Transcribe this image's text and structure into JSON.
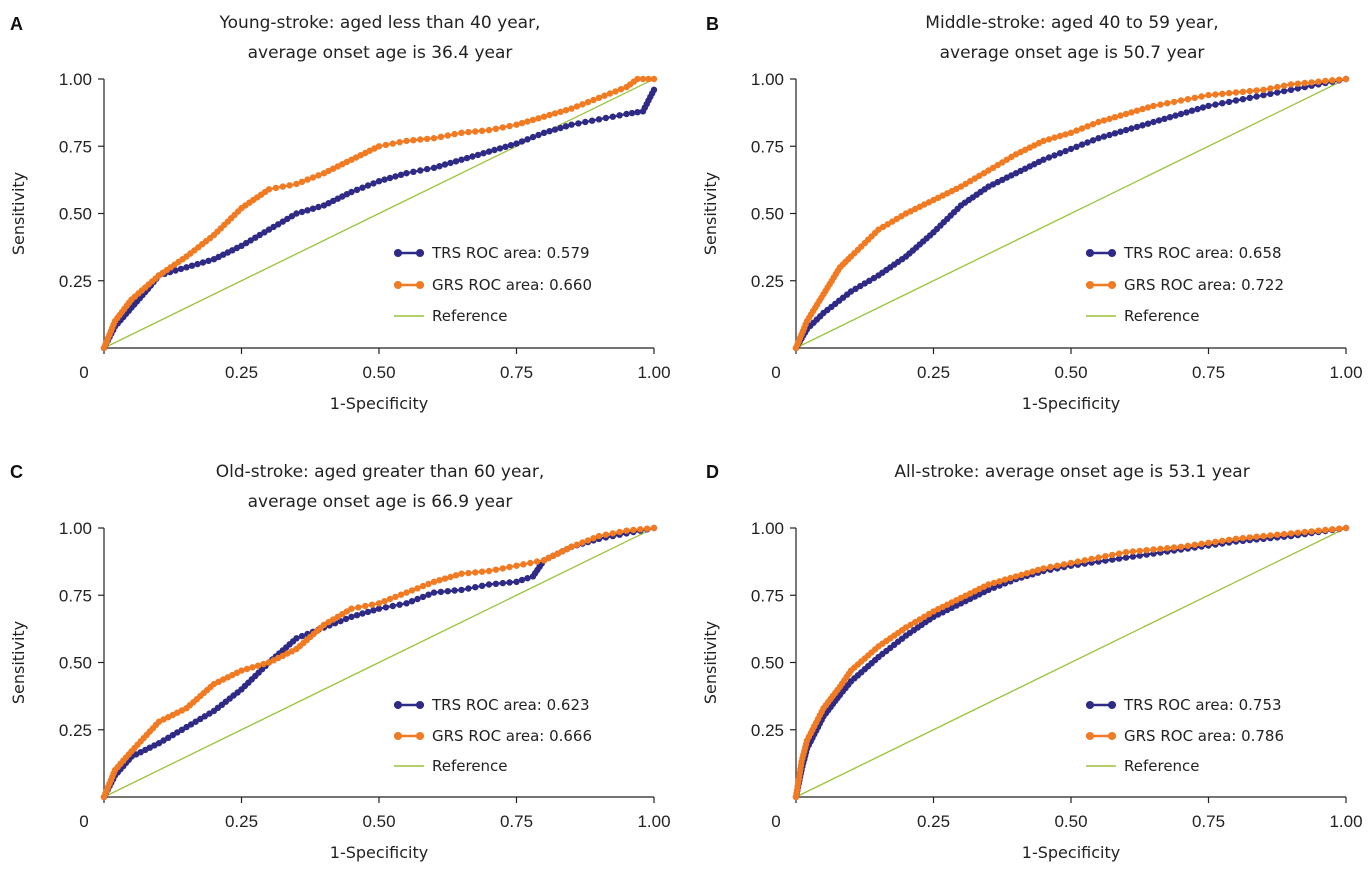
{
  "colors": {
    "trs": "#2e2a86",
    "grs": "#f07b22",
    "reference": "#9bc23c"
  },
  "chart_data": [
    {
      "type": "line",
      "panel": "A",
      "title": [
        "Young-stroke: aged less than 40 year,",
        "average onset age is 36.4 year"
      ],
      "xlabel": "1-Specificity",
      "ylabel": "Sensitivity",
      "xlim": [
        0,
        1
      ],
      "ylim": [
        0,
        1
      ],
      "xticks": [
        "0",
        "0.25",
        "0.50",
        "0.75",
        "1.00"
      ],
      "yticks": [
        "0.25",
        "0.50",
        "0.75",
        "1.00"
      ],
      "legend_position": "bottom-right",
      "series": [
        {
          "name": "TRS ROC area: 0.579",
          "key": "trs",
          "x": [
            0,
            0.02,
            0.05,
            0.08,
            0.1,
            0.15,
            0.2,
            0.25,
            0.3,
            0.35,
            0.4,
            0.45,
            0.5,
            0.55,
            0.6,
            0.65,
            0.7,
            0.75,
            0.8,
            0.85,
            0.9,
            0.95,
            0.98,
            1.0
          ],
          "y": [
            0,
            0.08,
            0.15,
            0.22,
            0.27,
            0.3,
            0.33,
            0.38,
            0.44,
            0.5,
            0.53,
            0.58,
            0.62,
            0.65,
            0.67,
            0.7,
            0.73,
            0.76,
            0.8,
            0.83,
            0.85,
            0.87,
            0.88,
            0.96
          ]
        },
        {
          "name": "GRS ROC area: 0.660",
          "key": "grs",
          "x": [
            0,
            0.02,
            0.05,
            0.1,
            0.15,
            0.2,
            0.25,
            0.3,
            0.35,
            0.4,
            0.45,
            0.5,
            0.55,
            0.6,
            0.65,
            0.7,
            0.75,
            0.8,
            0.85,
            0.9,
            0.95,
            0.97,
            1.0
          ],
          "y": [
            0,
            0.1,
            0.18,
            0.27,
            0.34,
            0.42,
            0.52,
            0.59,
            0.61,
            0.65,
            0.7,
            0.75,
            0.77,
            0.78,
            0.8,
            0.81,
            0.83,
            0.86,
            0.89,
            0.93,
            0.97,
            1.0,
            1.0
          ]
        },
        {
          "name": "Reference",
          "key": "reference",
          "x": [
            0,
            1
          ],
          "y": [
            0,
            1
          ]
        }
      ]
    },
    {
      "type": "line",
      "panel": "B",
      "title": [
        "Middle-stroke: aged 40 to 59 year,",
        "average onset age is 50.7 year"
      ],
      "xlabel": "1-Specificity",
      "ylabel": "Sensitivity",
      "xlim": [
        0,
        1
      ],
      "ylim": [
        0,
        1
      ],
      "xticks": [
        "0",
        "0.25",
        "0.50",
        "0.75",
        "1.00"
      ],
      "yticks": [
        "0.25",
        "0.50",
        "0.75",
        "1.00"
      ],
      "legend_position": "bottom-right",
      "series": [
        {
          "name": "TRS ROC area: 0.658",
          "key": "trs",
          "x": [
            0,
            0.02,
            0.05,
            0.1,
            0.15,
            0.2,
            0.25,
            0.3,
            0.35,
            0.4,
            0.45,
            0.5,
            0.55,
            0.6,
            0.65,
            0.7,
            0.75,
            0.8,
            0.85,
            0.9,
            0.95,
            1.0
          ],
          "y": [
            0,
            0.07,
            0.13,
            0.21,
            0.27,
            0.34,
            0.43,
            0.53,
            0.6,
            0.65,
            0.7,
            0.74,
            0.78,
            0.81,
            0.84,
            0.87,
            0.9,
            0.92,
            0.94,
            0.96,
            0.98,
            1.0
          ]
        },
        {
          "name": "GRS ROC area: 0.722",
          "key": "grs",
          "x": [
            0,
            0.02,
            0.05,
            0.08,
            0.1,
            0.15,
            0.2,
            0.25,
            0.3,
            0.35,
            0.4,
            0.45,
            0.5,
            0.55,
            0.6,
            0.65,
            0.7,
            0.75,
            0.8,
            0.85,
            0.9,
            0.95,
            1.0
          ],
          "y": [
            0,
            0.1,
            0.2,
            0.3,
            0.34,
            0.44,
            0.5,
            0.55,
            0.6,
            0.66,
            0.72,
            0.77,
            0.8,
            0.84,
            0.87,
            0.9,
            0.92,
            0.94,
            0.95,
            0.96,
            0.98,
            0.99,
            1.0
          ]
        },
        {
          "name": "Reference",
          "key": "reference",
          "x": [
            0,
            1
          ],
          "y": [
            0,
            1
          ]
        }
      ]
    },
    {
      "type": "line",
      "panel": "C",
      "title": [
        "Old-stroke: aged greater than 60 year,",
        "average onset age is 66.9 year"
      ],
      "xlabel": "1-Specificity",
      "ylabel": "Sensitivity",
      "xlim": [
        0,
        1
      ],
      "ylim": [
        0,
        1
      ],
      "xticks": [
        "0",
        "0.25",
        "0.50",
        "0.75",
        "1.00"
      ],
      "yticks": [
        "0.25",
        "0.50",
        "0.75",
        "1.00"
      ],
      "legend_position": "bottom-right",
      "series": [
        {
          "name": "TRS ROC area: 0.623",
          "key": "trs",
          "x": [
            0,
            0.02,
            0.05,
            0.1,
            0.15,
            0.2,
            0.25,
            0.3,
            0.35,
            0.4,
            0.45,
            0.5,
            0.55,
            0.6,
            0.65,
            0.7,
            0.75,
            0.78,
            0.8,
            0.85,
            0.9,
            0.95,
            1.0
          ],
          "y": [
            0,
            0.08,
            0.15,
            0.2,
            0.26,
            0.32,
            0.4,
            0.5,
            0.59,
            0.63,
            0.67,
            0.7,
            0.72,
            0.76,
            0.77,
            0.79,
            0.8,
            0.82,
            0.88,
            0.93,
            0.96,
            0.98,
            1.0
          ]
        },
        {
          "name": "GRS ROC area: 0.666",
          "key": "grs",
          "x": [
            0,
            0.02,
            0.05,
            0.1,
            0.15,
            0.2,
            0.25,
            0.3,
            0.35,
            0.4,
            0.45,
            0.5,
            0.55,
            0.6,
            0.65,
            0.7,
            0.75,
            0.8,
            0.85,
            0.9,
            0.95,
            1.0
          ],
          "y": [
            0,
            0.1,
            0.17,
            0.28,
            0.33,
            0.42,
            0.47,
            0.5,
            0.55,
            0.64,
            0.7,
            0.72,
            0.76,
            0.8,
            0.83,
            0.84,
            0.86,
            0.88,
            0.93,
            0.97,
            0.99,
            1.0
          ]
        },
        {
          "name": "Reference",
          "key": "reference",
          "x": [
            0,
            1
          ],
          "y": [
            0,
            1
          ]
        }
      ]
    },
    {
      "type": "line",
      "panel": "D",
      "title": [
        "All-stroke: average onset age is 53.1 year"
      ],
      "xlabel": "1-Specificity",
      "ylabel": "Sensitivity",
      "xlim": [
        0,
        1
      ],
      "ylim": [
        0,
        1
      ],
      "xticks": [
        "0",
        "0.25",
        "0.50",
        "0.75",
        "1.00"
      ],
      "yticks": [
        "0.25",
        "0.50",
        "0.75",
        "1.00"
      ],
      "legend_position": "bottom-right",
      "series": [
        {
          "name": "TRS ROC area: 0.753",
          "key": "trs",
          "x": [
            0,
            0.01,
            0.02,
            0.05,
            0.08,
            0.1,
            0.15,
            0.2,
            0.25,
            0.3,
            0.35,
            0.4,
            0.45,
            0.5,
            0.6,
            0.7,
            0.8,
            0.9,
            1.0
          ],
          "y": [
            0,
            0.1,
            0.18,
            0.3,
            0.38,
            0.43,
            0.52,
            0.6,
            0.67,
            0.72,
            0.77,
            0.81,
            0.84,
            0.86,
            0.89,
            0.92,
            0.95,
            0.97,
            1.0
          ]
        },
        {
          "name": "GRS ROC area: 0.786",
          "key": "grs",
          "x": [
            0,
            0.01,
            0.02,
            0.05,
            0.08,
            0.1,
            0.15,
            0.2,
            0.25,
            0.3,
            0.35,
            0.4,
            0.45,
            0.5,
            0.6,
            0.7,
            0.8,
            0.9,
            1.0
          ],
          "y": [
            0,
            0.13,
            0.21,
            0.33,
            0.41,
            0.47,
            0.56,
            0.63,
            0.69,
            0.74,
            0.79,
            0.82,
            0.85,
            0.87,
            0.91,
            0.93,
            0.96,
            0.98,
            1.0
          ]
        },
        {
          "name": "Reference",
          "key": "reference",
          "x": [
            0,
            1
          ],
          "y": [
            0,
            1
          ]
        }
      ]
    }
  ]
}
